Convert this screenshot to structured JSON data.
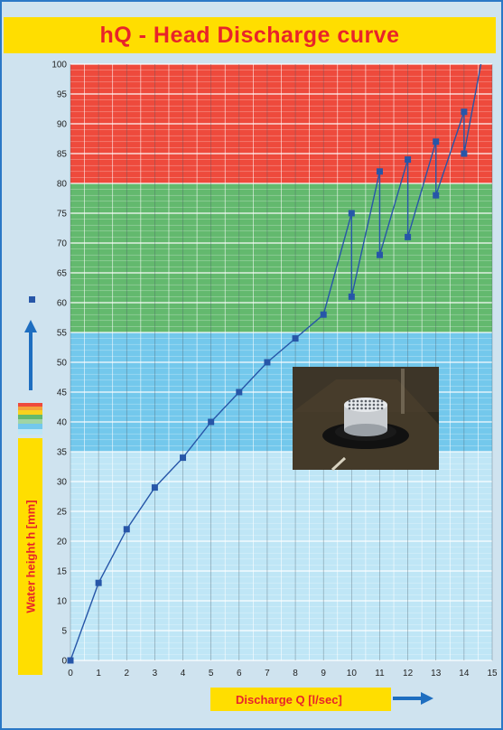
{
  "title": "hQ - Head Discharge curve",
  "colors": {
    "band_red": "#ee4a3c",
    "band_green": "#63b96e",
    "band_blue": "#73c8ec",
    "band_lightblue": "#bfe6f6",
    "line": "#2756a8",
    "accent_yellow": "#ffde00",
    "label_red": "#e8242a",
    "arrow_blue": "#1e6ec0"
  },
  "chart_data": {
    "type": "line",
    "title": "hQ - Head Discharge curve",
    "xlabel": "Discharge Q [l/sec]",
    "ylabel": "Water height h [mm]",
    "xlim": [
      0,
      15
    ],
    "ylim": [
      0,
      100
    ],
    "x_ticks": [
      "0",
      "1",
      "2",
      "3",
      "4",
      "5",
      "6",
      "7",
      "8",
      "9",
      "10",
      "11",
      "12",
      "13",
      "14",
      "15"
    ],
    "y_ticks": [
      "0",
      "5",
      "10",
      "15",
      "20",
      "25",
      "30",
      "35",
      "40",
      "45",
      "50",
      "55",
      "60",
      "65",
      "70",
      "75",
      "80",
      "85",
      "90",
      "95",
      "100"
    ],
    "grid": true,
    "bands": [
      {
        "from": 0,
        "to": 35,
        "color": "light-blue"
      },
      {
        "from": 35,
        "to": 55,
        "color": "blue"
      },
      {
        "from": 55,
        "to": 80,
        "color": "green"
      },
      {
        "from": 80,
        "to": 100,
        "color": "red"
      }
    ],
    "series": [
      {
        "x": [
          0,
          1,
          2,
          3,
          4,
          5,
          6,
          7,
          8,
          9,
          10,
          10,
          11,
          11,
          12,
          12,
          13,
          13,
          14,
          14,
          14.6
        ],
        "y": [
          0,
          13,
          22,
          29,
          34,
          40,
          45,
          50,
          54,
          58,
          75,
          61,
          82,
          68,
          84,
          71,
          87,
          78,
          92,
          85,
          100
        ],
        "marker": [
          true,
          true,
          true,
          true,
          true,
          true,
          true,
          true,
          true,
          true,
          true,
          true,
          true,
          true,
          true,
          true,
          true,
          true,
          true,
          true,
          false
        ]
      }
    ]
  }
}
